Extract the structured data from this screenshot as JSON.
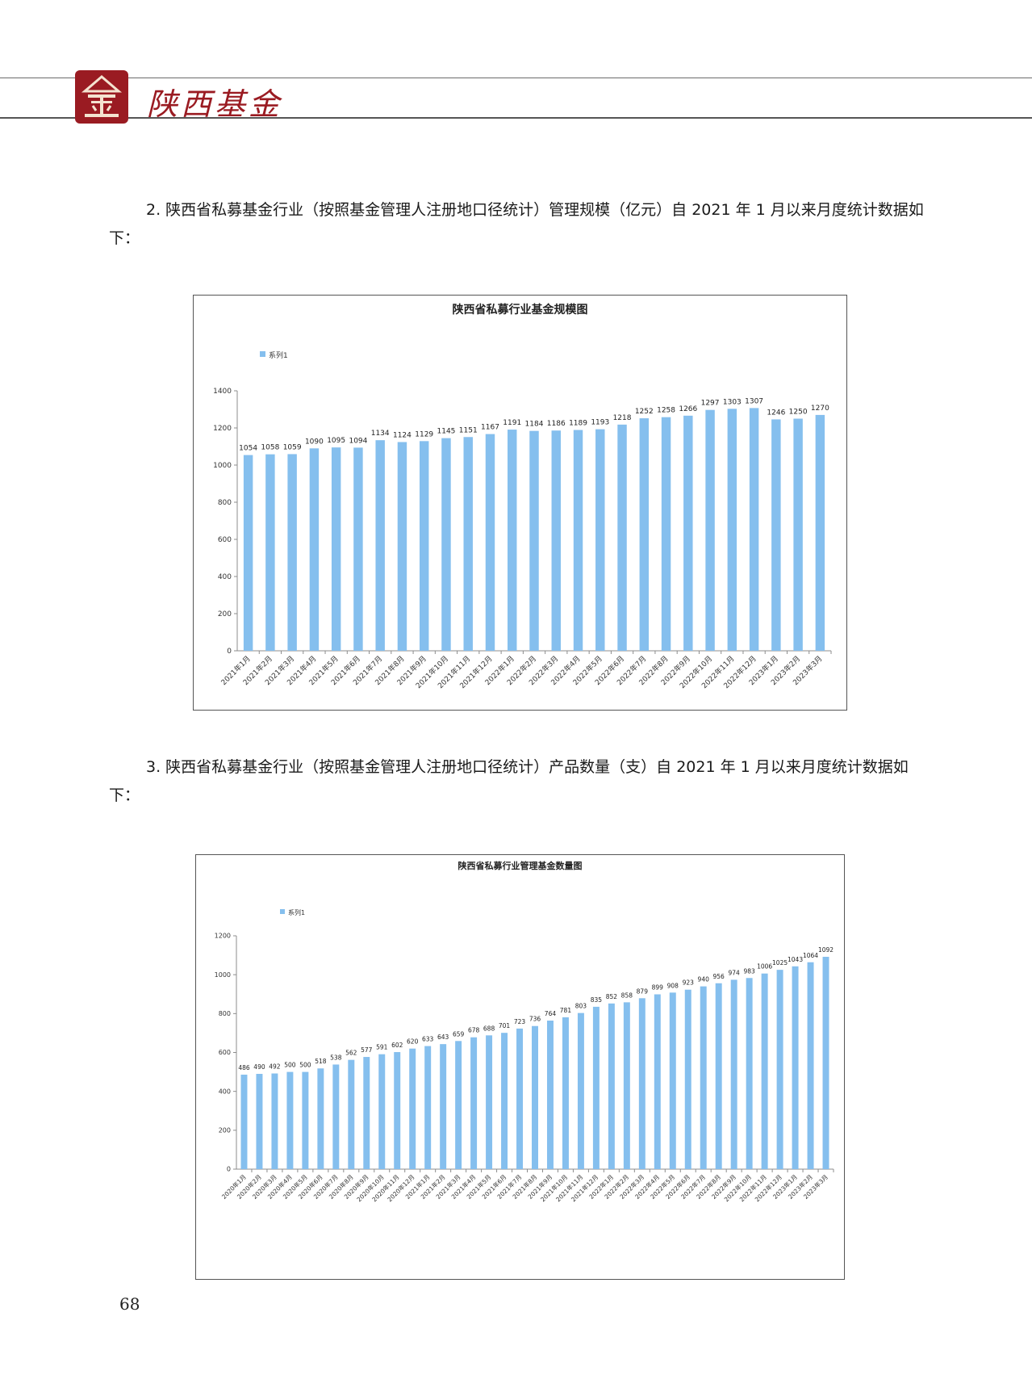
{
  "header": {
    "logo_icon": "fund-seal-icon",
    "brand": "陕西基金",
    "brand_color": "#9a1b22"
  },
  "section2": {
    "text": "2. 陕西省私募基金行业（按照基金管理人注册地口径统计）管理规模（亿元）自 2021 年 1 月以来月度统计数据如下："
  },
  "section3": {
    "text": "3. 陕西省私募基金行业（按照基金管理人注册地口径统计）产品数量（支）自 2021 年 1 月以来月度统计数据如下："
  },
  "page_number": "68",
  "chart_data": [
    {
      "type": "bar",
      "title": "陕西省私募行业基金规模图",
      "legend": "top-left",
      "bar_color": "#85bfee",
      "xlabel": "",
      "ylabel": "",
      "ylim": [
        0,
        1400
      ],
      "yticks": [
        0,
        200,
        400,
        600,
        800,
        1000,
        1200,
        1400
      ],
      "categories": [
        "2021年1月",
        "2021年2月",
        "2021年3月",
        "2021年4月",
        "2021年5月",
        "2021年6月",
        "2021年7月",
        "2021年8月",
        "2021年9月",
        "2021年10月",
        "2021年11月",
        "2021年12月",
        "2022年1月",
        "2022年2月",
        "2022年3月",
        "2022年4月",
        "2022年5月",
        "2022年6月",
        "2022年7月",
        "2022年8月",
        "2022年9月",
        "2022年10月",
        "2022年11月",
        "2022年12月",
        "2023年1月",
        "2023年2月",
        "2023年3月"
      ],
      "series": [
        {
          "name": "系列1",
          "values": [
            1054,
            1058,
            1059,
            1090,
            1095,
            1094,
            1134,
            1124,
            1129,
            1145,
            1151,
            1167,
            1191,
            1184,
            1186,
            1189,
            1193,
            1218,
            1252,
            1258,
            1266,
            1297,
            1303,
            1307,
            1246,
            1250,
            1270
          ]
        }
      ]
    },
    {
      "type": "bar",
      "title": "陕西省私募行业管理基金数量图",
      "legend": "top-left",
      "bar_color": "#85bfee",
      "xlabel": "",
      "ylabel": "",
      "ylim": [
        0,
        1200
      ],
      "yticks": [
        0,
        200,
        400,
        600,
        800,
        1000,
        1200
      ],
      "categories": [
        "2020年1月",
        "2020年2月",
        "2020年3月",
        "2020年4月",
        "2020年5月",
        "2020年6月",
        "2020年7月",
        "2020年8月",
        "2020年9月",
        "2020年10月",
        "2020年11月",
        "2020年12月",
        "2021年1月",
        "2021年2月",
        "2021年3月",
        "2021年4月",
        "2021年5月",
        "2021年6月",
        "2021年7月",
        "2021年8月",
        "2021年9月",
        "2021年10月",
        "2021年11月",
        "2021年12月",
        "2022年1月",
        "2022年2月",
        "2022年3月",
        "2022年4月",
        "2022年5月",
        "2022年6月",
        "2022年7月",
        "2022年8月",
        "2022年9月",
        "2022年10月",
        "2022年11月",
        "2022年12月",
        "2023年1月",
        "2023年2月",
        "2023年3月"
      ],
      "series": [
        {
          "name": "系列1",
          "values": [
            486,
            490,
            492,
            500,
            500,
            518,
            538,
            562,
            577,
            591,
            602,
            620,
            633,
            643,
            659,
            678,
            688,
            701,
            723,
            736,
            764,
            781,
            803,
            835,
            852,
            858,
            879,
            899,
            908,
            923,
            940,
            956,
            974,
            983,
            1006,
            1025,
            1043,
            1064,
            1092
          ]
        }
      ]
    }
  ]
}
